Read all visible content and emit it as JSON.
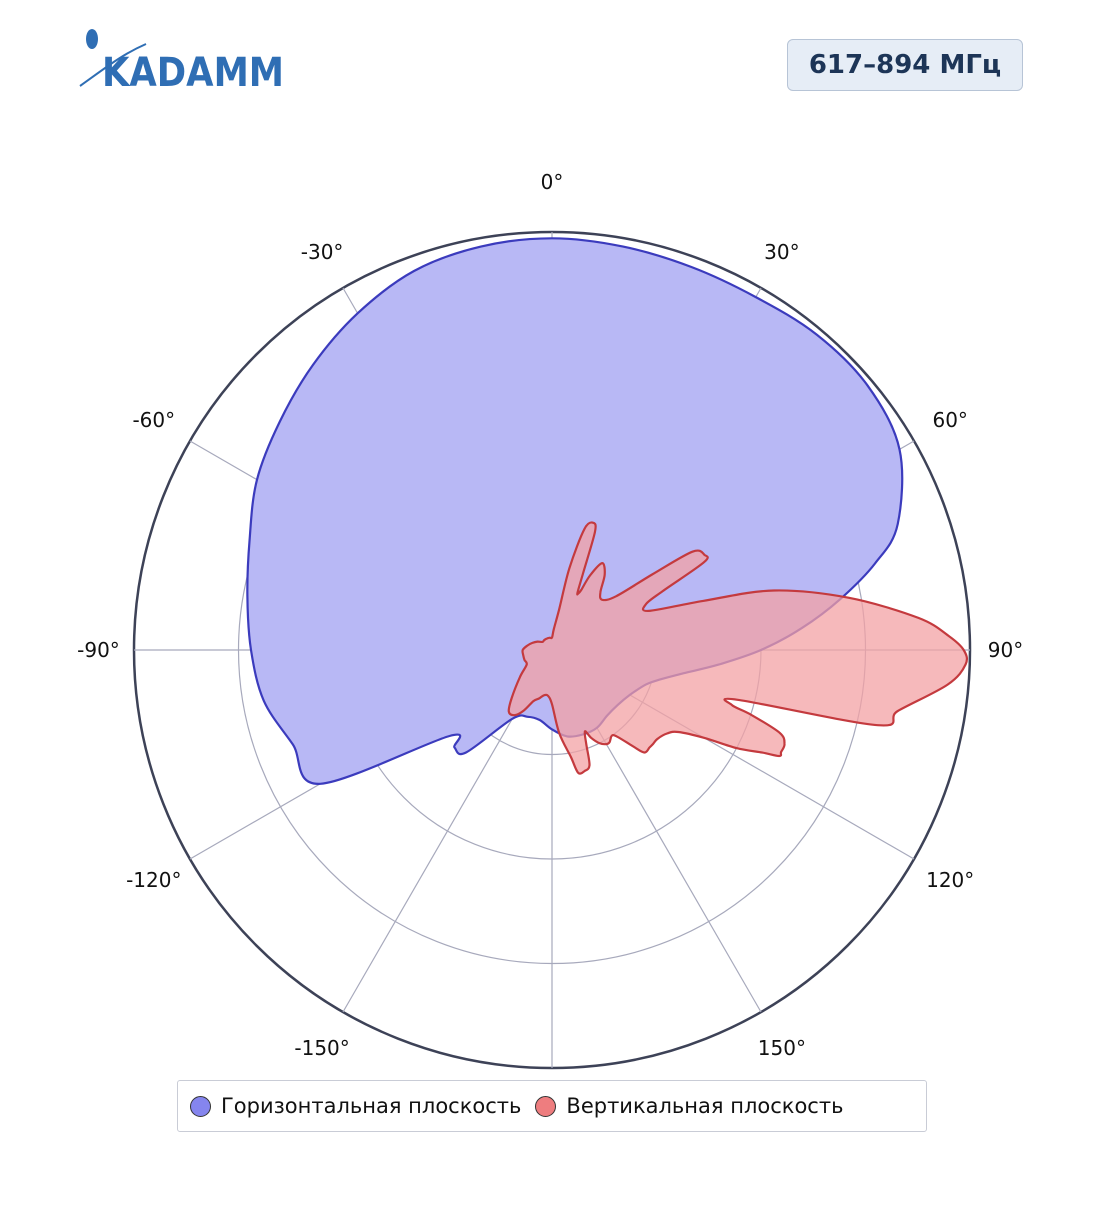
{
  "logo": {
    "text": "KADAMM"
  },
  "badge": {
    "frequency": "617–894 МГц"
  },
  "colors": {
    "horizontal_fill": "#b8b8f5",
    "horizontal_line": "#3b3bbd",
    "horizontal_marker": "#8585ee",
    "vertical_fill": "#f3a2a4",
    "vertical_line": "#c43a3e",
    "vertical_marker": "#ee7d7f",
    "grid": "#a7a9bc",
    "outer_ring": "#3d4257",
    "logo": "#2f6eb4",
    "badge_text": "#1d3557"
  },
  "chart_data": {
    "type": "polar",
    "angular_ticks": [
      {
        "angle": 0,
        "label": "0°"
      },
      {
        "angle": 30,
        "label": "30°"
      },
      {
        "angle": 60,
        "label": "60°"
      },
      {
        "angle": 90,
        "label": "90°"
      },
      {
        "angle": 120,
        "label": "120°"
      },
      {
        "angle": 150,
        "label": "150°"
      },
      {
        "angle": -150,
        "label": "-150°"
      },
      {
        "angle": -120,
        "label": "-120°"
      },
      {
        "angle": -90,
        "label": "-90°"
      },
      {
        "angle": -60,
        "label": "-60°"
      },
      {
        "angle": -30,
        "label": "-30°"
      }
    ],
    "radial_range": [
      0,
      1
    ],
    "radial_rings": [
      0.25,
      0.5,
      0.75,
      1.0
    ],
    "grid": true,
    "legend_position": "bottom",
    "series": [
      {
        "name": "Горизонтальная плоскость",
        "theta": [
          0,
          10,
          20,
          30,
          40,
          50,
          60,
          70,
          75,
          80,
          85,
          90,
          95,
          100,
          105,
          110,
          120,
          130,
          140,
          150,
          160,
          170,
          180,
          190,
          200,
          210,
          220,
          225,
          230,
          240,
          250,
          260,
          270,
          280,
          290,
          300,
          310,
          320,
          330,
          340,
          350
        ],
        "r": [
          0.985,
          0.98,
          0.975,
          0.975,
          0.985,
          0.985,
          0.96,
          0.88,
          0.8,
          0.7,
          0.6,
          0.5,
          0.4,
          0.32,
          0.27,
          0.24,
          0.215,
          0.205,
          0.205,
          0.215,
          0.215,
          0.21,
          0.19,
          0.17,
          0.17,
          0.19,
          0.32,
          0.33,
          0.32,
          0.64,
          0.66,
          0.7,
          0.72,
          0.74,
          0.77,
          0.815,
          0.85,
          0.89,
          0.93,
          0.965,
          0.98
        ]
      },
      {
        "name": "Вертикальная плоскость",
        "theta": [
          0,
          5,
          10,
          12,
          15,
          18,
          20,
          22,
          24,
          25,
          26,
          27,
          30,
          35,
          40,
          45,
          50,
          53,
          55,
          58,
          60,
          62,
          64,
          68,
          72,
          75,
          80,
          85,
          88,
          90,
          92,
          95,
          100,
          103,
          105,
          107,
          108,
          110,
          112,
          114,
          115,
          116,
          118,
          120,
          123,
          126,
          130,
          133,
          135,
          138,
          140,
          143,
          145,
          148,
          150,
          153,
          156,
          158,
          160,
          162,
          165,
          168,
          170,
          175,
          180,
          185,
          190,
          195,
          200,
          205,
          210,
          215,
          220,
          230,
          240,
          250,
          260,
          270,
          280,
          290,
          300,
          310,
          320,
          330,
          340,
          350
        ],
        "r": [
          0.03,
          0.05,
          0.1,
          0.2,
          0.3,
          0.32,
          0.3,
          0.2,
          0.15,
          0.15,
          0.16,
          0.2,
          0.24,
          0.22,
          0.18,
          0.17,
          0.2,
          0.3,
          0.41,
          0.43,
          0.42,
          0.3,
          0.25,
          0.25,
          0.38,
          0.55,
          0.72,
          0.88,
          0.95,
          0.985,
          0.99,
          0.95,
          0.84,
          0.8,
          0.46,
          0.45,
          0.5,
          0.58,
          0.6,
          0.6,
          0.6,
          0.56,
          0.5,
          0.42,
          0.36,
          0.34,
          0.33,
          0.33,
          0.33,
          0.33,
          0.3,
          0.26,
          0.25,
          0.26,
          0.26,
          0.25,
          0.23,
          0.21,
          0.24,
          0.29,
          0.3,
          0.3,
          0.26,
          0.2,
          0.13,
          0.11,
          0.11,
          0.12,
          0.13,
          0.16,
          0.18,
          0.18,
          0.15,
          0.1,
          0.07,
          0.07,
          0.07,
          0.07,
          0.06,
          0.05,
          0.04,
          0.03,
          0.03,
          0.03,
          0.03,
          0.03
        ]
      }
    ]
  }
}
